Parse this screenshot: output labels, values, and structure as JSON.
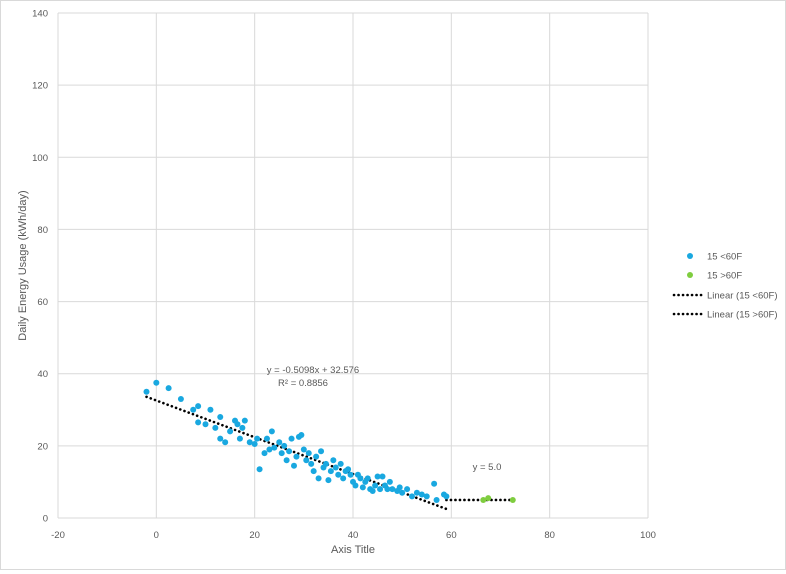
{
  "chart_data": {
    "type": "scatter",
    "title": "",
    "xlabel": "Axis Title",
    "ylabel": "Daily Energy Usage (kWh/day)",
    "xlim": [
      -20,
      100
    ],
    "ylim": [
      0,
      140
    ],
    "x_ticks": [
      -20,
      0,
      20,
      40,
      60,
      80,
      100
    ],
    "y_ticks": [
      0,
      20,
      40,
      60,
      80,
      100,
      120,
      140
    ],
    "x_tick_labels": [
      "-20",
      "0",
      "20",
      "40",
      "60",
      "80",
      "100"
    ],
    "y_tick_labels": [
      "0",
      "20",
      "40",
      "60",
      "80",
      "100",
      "120",
      "140"
    ],
    "grid": true,
    "legend_position": "right",
    "series": [
      {
        "name": "15 <60F",
        "color": "#19a8e0",
        "points": [
          [
            -2,
            35
          ],
          [
            0,
            37.5
          ],
          [
            2.5,
            36
          ],
          [
            5,
            33
          ],
          [
            7.5,
            30
          ],
          [
            8.5,
            31
          ],
          [
            8.5,
            26.5
          ],
          [
            10,
            26
          ],
          [
            11,
            30
          ],
          [
            12,
            25
          ],
          [
            13,
            28
          ],
          [
            13,
            22
          ],
          [
            14,
            21
          ],
          [
            15,
            24
          ],
          [
            16,
            27
          ],
          [
            16.5,
            26
          ],
          [
            17,
            22
          ],
          [
            17.5,
            25
          ],
          [
            18,
            27
          ],
          [
            19,
            21
          ],
          [
            20,
            20.5
          ],
          [
            20.5,
            22
          ],
          [
            21,
            13.5
          ],
          [
            22,
            18
          ],
          [
            22.5,
            22
          ],
          [
            23,
            19
          ],
          [
            23.5,
            24
          ],
          [
            24,
            19.5
          ],
          [
            25,
            21
          ],
          [
            25.5,
            18
          ],
          [
            26,
            20
          ],
          [
            26.5,
            16
          ],
          [
            27,
            18.5
          ],
          [
            27.5,
            22
          ],
          [
            28,
            14.5
          ],
          [
            28.5,
            17
          ],
          [
            29,
            22.5
          ],
          [
            29.5,
            23
          ],
          [
            30,
            19
          ],
          [
            30.5,
            16
          ],
          [
            31,
            18
          ],
          [
            31.5,
            15
          ],
          [
            32,
            13
          ],
          [
            32.5,
            17
          ],
          [
            33,
            11
          ],
          [
            33.5,
            18.5
          ],
          [
            34,
            14
          ],
          [
            34.5,
            15
          ],
          [
            35,
            10.5
          ],
          [
            35.5,
            13
          ],
          [
            36,
            16
          ],
          [
            36.5,
            14
          ],
          [
            37,
            12
          ],
          [
            37.5,
            15
          ],
          [
            38,
            11
          ],
          [
            38.5,
            13
          ],
          [
            39,
            13.5
          ],
          [
            39.5,
            12
          ],
          [
            40,
            10
          ],
          [
            40.5,
            9
          ],
          [
            41,
            12
          ],
          [
            41.5,
            11
          ],
          [
            42,
            8.5
          ],
          [
            42.5,
            10
          ],
          [
            43,
            11
          ],
          [
            43.5,
            8
          ],
          [
            44,
            7.5
          ],
          [
            44.5,
            9
          ],
          [
            45,
            11.5
          ],
          [
            45.5,
            8
          ],
          [
            46,
            11.5
          ],
          [
            46.5,
            9
          ],
          [
            47,
            8
          ],
          [
            47.5,
            10
          ],
          [
            48,
            8
          ],
          [
            49,
            7.5
          ],
          [
            49.5,
            8.5
          ],
          [
            50,
            7
          ],
          [
            51,
            8
          ],
          [
            52,
            6
          ],
          [
            53,
            7
          ],
          [
            54,
            6.5
          ],
          [
            55,
            6
          ],
          [
            56.5,
            9.5
          ],
          [
            57,
            5
          ],
          [
            58.5,
            6.5
          ],
          [
            59,
            6
          ]
        ]
      },
      {
        "name": "15 >60F",
        "color": "#7fcd3f",
        "points": [
          [
            66.5,
            5
          ],
          [
            67.5,
            5.5
          ],
          [
            72.5,
            5
          ]
        ]
      }
    ],
    "trendlines": [
      {
        "name": "Linear (15 <60F)",
        "color": "#000000",
        "x_range": [
          -2,
          59
        ],
        "slope": -0.5098,
        "intercept": 32.576,
        "equation": "y = -0.5098x + 32.576",
        "r_squared": "R² = 0.8856"
      },
      {
        "name": "Linear (15 >60F)",
        "color": "#000000",
        "x_range": [
          59,
          72.5
        ],
        "slope": 0,
        "intercept": 5.0,
        "equation": "y = 5.0",
        "r_squared": ""
      }
    ]
  }
}
